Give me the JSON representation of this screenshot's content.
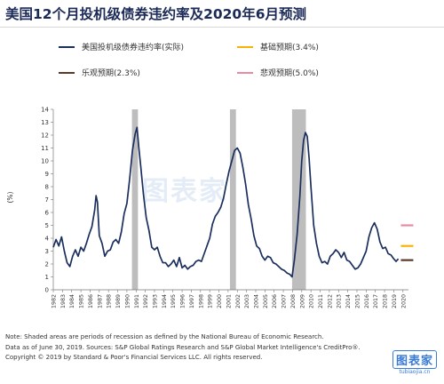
{
  "header": {
    "title": "美国12个月投机级债券违约率及2020年6月预测"
  },
  "legend": [
    {
      "label": "美国投机级债券违约率(实际)",
      "color": "#1b2f5e"
    },
    {
      "label": "基础预期(3.4%)",
      "color": "#f5b400"
    },
    {
      "label": "乐观预期(2.3%)",
      "color": "#5a3a26"
    },
    {
      "label": "悲观预期(5.0%)",
      "color": "#e88aa0"
    }
  ],
  "watermark": "图表家",
  "notes": [
    "Note: Shaded areas are periods of recession as defined by the National Bureau of Economic Research.",
    "Data as of June 30, 2019. Sources: S&P Global Ratings Research and S&P Global Market Intelligence's CreditPro®.",
    "Copyright © 2019 by Standard & Poor's Financial Services LLC. All rights reserved."
  ],
  "logo": {
    "main": "图表家",
    "sub": "tubiaojia.cn"
  },
  "chart_data": {
    "type": "line",
    "ylabel": "(%)",
    "ylim": [
      0,
      14
    ],
    "yticks": [
      0,
      1,
      2,
      3,
      4,
      5,
      6,
      7,
      8,
      9,
      10,
      11,
      12,
      13,
      14
    ],
    "xlim": [
      1982,
      2020.6
    ],
    "xticks": [
      "1982",
      "1983",
      "1984",
      "1985",
      "1986",
      "1987",
      "1988",
      "1989",
      "1990",
      "1991",
      "1992",
      "1993",
      "1994",
      "1995",
      "1996",
      "1997",
      "1998",
      "1999",
      "2000",
      "2001",
      "2002",
      "2003",
      "2004",
      "2005",
      "2006",
      "2007",
      "2008",
      "2009",
      "2010",
      "2011",
      "2012",
      "2013",
      "2014",
      "2015",
      "2016",
      "2017",
      "2018",
      "2019",
      "2020"
    ],
    "recessions": [
      [
        1990.55,
        1991.2
      ],
      [
        2001.2,
        2001.85
      ],
      [
        2007.95,
        2009.45
      ]
    ],
    "series": [
      {
        "name": "美国投机级债券违约率(实际)",
        "color": "#1b2f5e",
        "x": [
          1982.0,
          1982.3,
          1982.6,
          1982.9,
          1983.2,
          1983.5,
          1983.8,
          1984.1,
          1984.4,
          1984.7,
          1985.0,
          1985.3,
          1985.6,
          1985.9,
          1986.2,
          1986.5,
          1986.65,
          1986.8,
          1987.0,
          1987.3,
          1987.6,
          1987.9,
          1988.2,
          1988.5,
          1988.8,
          1989.1,
          1989.4,
          1989.7,
          1990.0,
          1990.3,
          1990.6,
          1990.9,
          1991.1,
          1991.3,
          1991.5,
          1991.8,
          1992.1,
          1992.4,
          1992.7,
          1993.0,
          1993.3,
          1993.6,
          1993.9,
          1994.2,
          1994.5,
          1994.8,
          1995.1,
          1995.4,
          1995.7,
          1996.0,
          1996.3,
          1996.6,
          1996.9,
          1997.2,
          1997.5,
          1997.8,
          1998.1,
          1998.4,
          1998.7,
          1999.0,
          1999.3,
          1999.6,
          1999.9,
          2000.2,
          2000.5,
          2000.8,
          2001.1,
          2001.4,
          2001.7,
          2002.0,
          2002.3,
          2002.6,
          2002.9,
          2003.2,
          2003.5,
          2003.8,
          2004.1,
          2004.4,
          2004.7,
          2005.0,
          2005.3,
          2005.6,
          2005.9,
          2006.2,
          2006.5,
          2006.8,
          2007.1,
          2007.4,
          2007.7,
          2007.95,
          2008.2,
          2008.5,
          2008.8,
          2009.0,
          2009.2,
          2009.4,
          2009.6,
          2009.8,
          2010.0,
          2010.3,
          2010.6,
          2010.9,
          2011.2,
          2011.5,
          2011.8,
          2012.1,
          2012.4,
          2012.7,
          2013.0,
          2013.3,
          2013.6,
          2013.9,
          2014.2,
          2014.5,
          2014.8,
          2015.1,
          2015.4,
          2015.7,
          2016.0,
          2016.3,
          2016.6,
          2016.9,
          2017.2,
          2017.5,
          2017.8,
          2018.1,
          2018.4,
          2018.7,
          2019.0,
          2019.25,
          2019.5
        ],
        "y": [
          3.3,
          3.9,
          3.4,
          4.1,
          3.0,
          2.1,
          1.8,
          2.6,
          3.1,
          2.6,
          3.3,
          3.0,
          3.6,
          4.3,
          4.9,
          6.2,
          7.3,
          6.8,
          4.2,
          3.6,
          2.6,
          3.0,
          3.1,
          3.7,
          3.9,
          3.6,
          4.5,
          5.9,
          6.7,
          8.6,
          10.8,
          12.1,
          12.6,
          11.0,
          9.6,
          7.4,
          5.6,
          4.6,
          3.3,
          3.1,
          3.3,
          2.6,
          2.1,
          2.1,
          1.8,
          2.0,
          2.3,
          1.8,
          2.5,
          1.7,
          1.9,
          1.6,
          1.8,
          1.9,
          2.2,
          2.3,
          2.2,
          2.8,
          3.4,
          4.0,
          5.1,
          5.7,
          6.0,
          6.4,
          7.1,
          8.2,
          9.2,
          10.0,
          10.8,
          11.0,
          10.6,
          9.5,
          8.2,
          6.6,
          5.5,
          4.2,
          3.4,
          3.2,
          2.6,
          2.3,
          2.6,
          2.5,
          2.1,
          2.0,
          1.8,
          1.6,
          1.5,
          1.3,
          1.2,
          1.0,
          2.3,
          4.3,
          7.3,
          10.0,
          11.6,
          12.2,
          11.9,
          10.2,
          8.0,
          5.0,
          3.6,
          2.6,
          2.1,
          2.2,
          2.0,
          2.6,
          2.8,
          3.1,
          2.9,
          2.5,
          2.9,
          2.3,
          2.2,
          1.9,
          1.6,
          1.7,
          2.0,
          2.5,
          3.0,
          4.1,
          4.8,
          5.2,
          4.7,
          3.7,
          3.2,
          3.3,
          2.8,
          2.7,
          2.4,
          2.2,
          2.4
        ]
      }
    ],
    "forecasts": [
      {
        "name": "悲观预期(5.0%)",
        "x": 2020.45,
        "y": 5.0,
        "color": "#e88aa0"
      },
      {
        "name": "基础预期(3.4%)",
        "x": 2020.45,
        "y": 3.4,
        "color": "#f5b400"
      },
      {
        "name": "乐观预期(2.3%)",
        "x": 2020.45,
        "y": 2.3,
        "color": "#5a3a26"
      }
    ]
  }
}
